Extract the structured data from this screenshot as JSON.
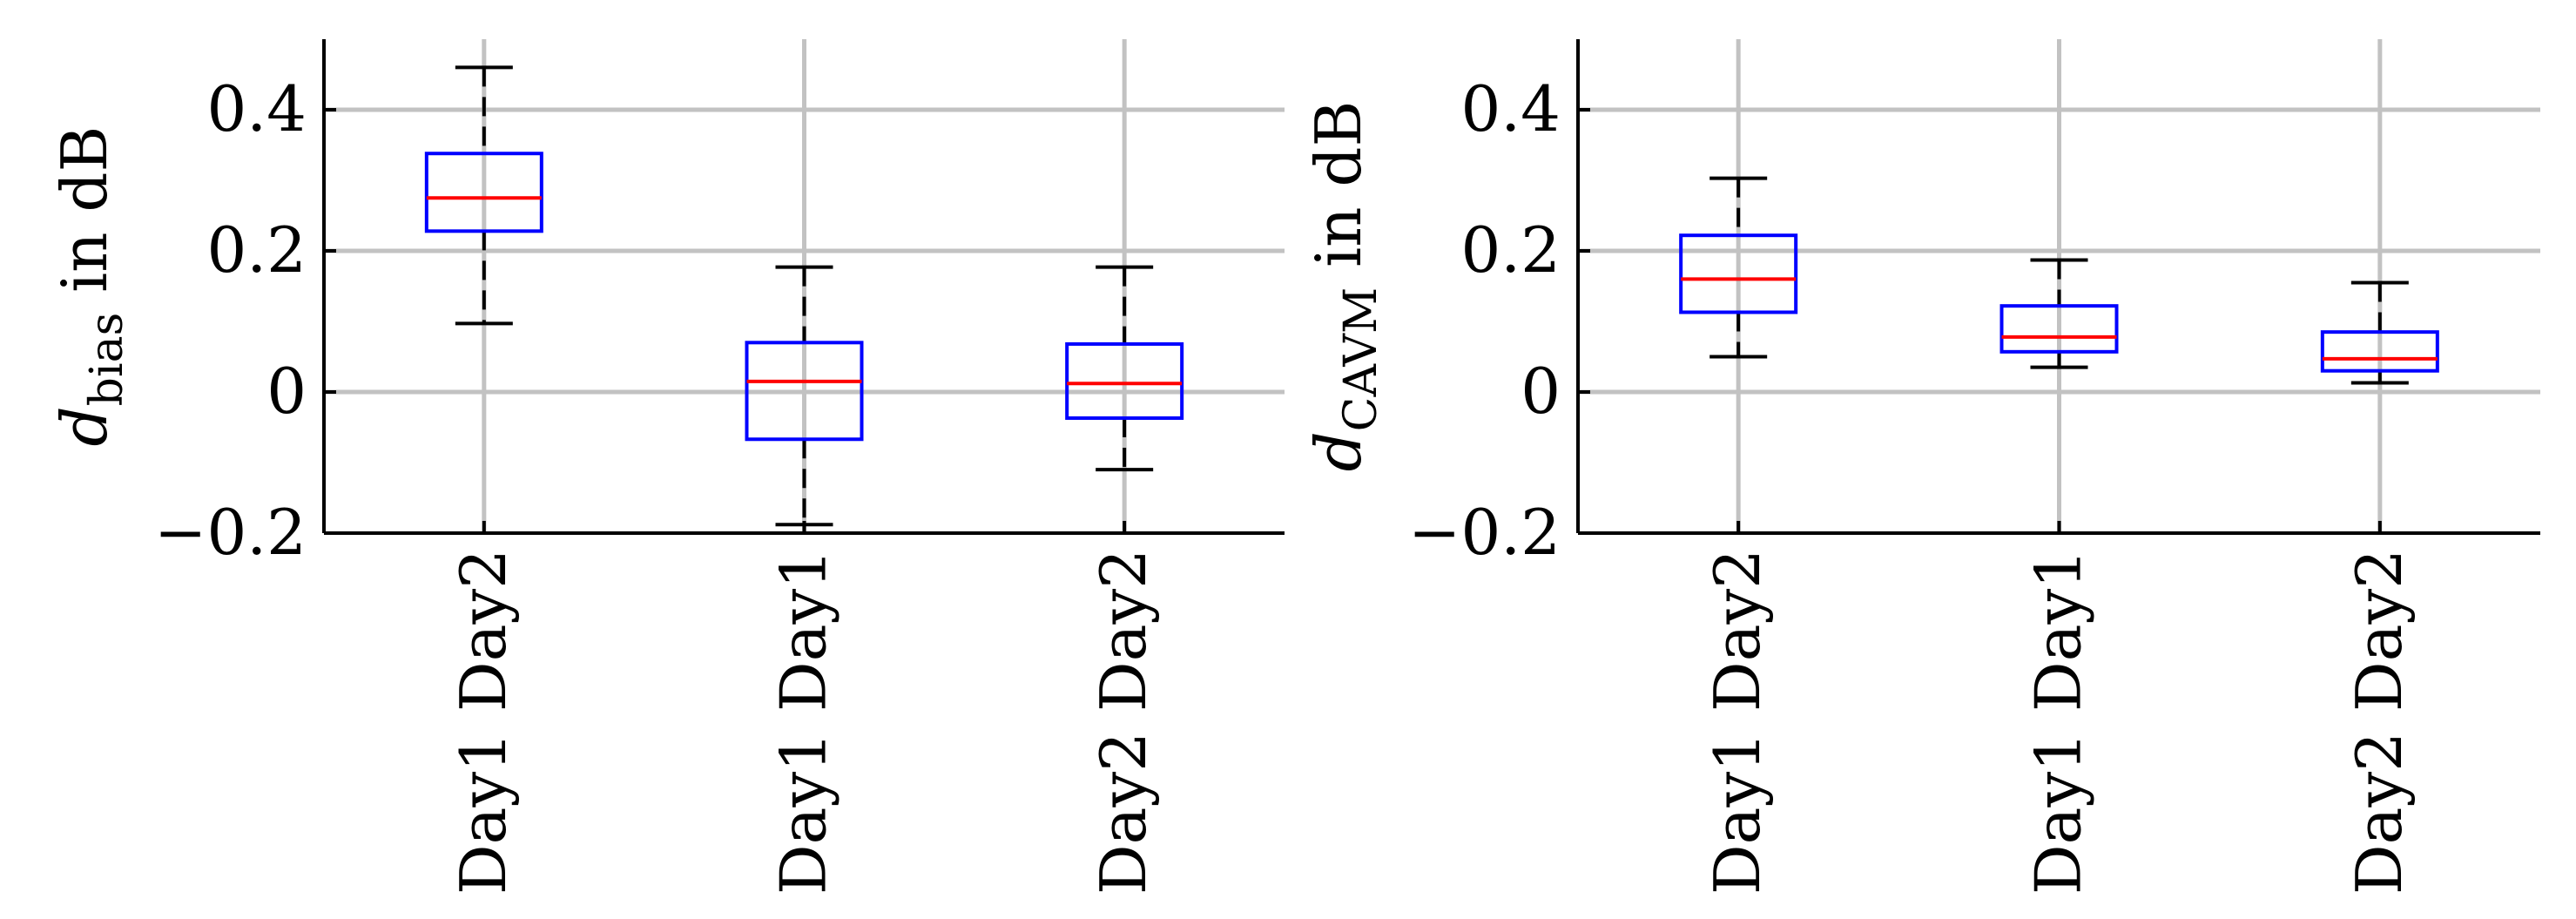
{
  "chart_data": [
    {
      "type": "box",
      "ylabel_main": "d",
      "ylabel_sub": "bias",
      "ylabel_rest": " in dB",
      "ylim": [
        -0.2,
        0.5
      ],
      "yticks": [
        -0.2,
        0,
        0.2,
        0.4
      ],
      "ytick_labels": [
        "−0.2",
        "0",
        "0.2",
        "0.4"
      ],
      "grid": true,
      "categories": [
        "Day1 Day2",
        "Day1 Day1",
        "Day2 Day2"
      ],
      "boxes": [
        {
          "whisker_low": 0.097,
          "q1": 0.228,
          "median": 0.275,
          "q3": 0.338,
          "whisker_high": 0.46
        },
        {
          "whisker_low": -0.188,
          "q1": -0.067,
          "median": 0.015,
          "q3": 0.07,
          "whisker_high": 0.177
        },
        {
          "whisker_low": -0.11,
          "q1": -0.037,
          "median": 0.012,
          "q3": 0.068,
          "whisker_high": 0.177
        }
      ],
      "colors": {
        "box": "#0000ff",
        "median": "#ff0000",
        "whisker": "#000000",
        "grid": "#c2c2c2"
      }
    },
    {
      "type": "box",
      "ylabel_main": "d",
      "ylabel_sub": "CAVM",
      "ylabel_rest": " in dB",
      "ylim": [
        -0.2,
        0.5
      ],
      "yticks": [
        -0.2,
        0,
        0.2,
        0.4
      ],
      "ytick_labels": [
        "−0.2",
        "0",
        "0.2",
        "0.4"
      ],
      "grid": true,
      "categories": [
        "Day1 Day2",
        "Day1 Day1",
        "Day2 Day2"
      ],
      "boxes": [
        {
          "whisker_low": 0.05,
          "q1": 0.113,
          "median": 0.16,
          "q3": 0.222,
          "whisker_high": 0.303
        },
        {
          "whisker_low": 0.035,
          "q1": 0.057,
          "median": 0.078,
          "q3": 0.122,
          "whisker_high": 0.187
        },
        {
          "whisker_low": 0.013,
          "q1": 0.03,
          "median": 0.047,
          "q3": 0.085,
          "whisker_high": 0.155
        }
      ],
      "colors": {
        "box": "#0000ff",
        "median": "#ff0000",
        "whisker": "#000000",
        "grid": "#c2c2c2"
      }
    }
  ]
}
